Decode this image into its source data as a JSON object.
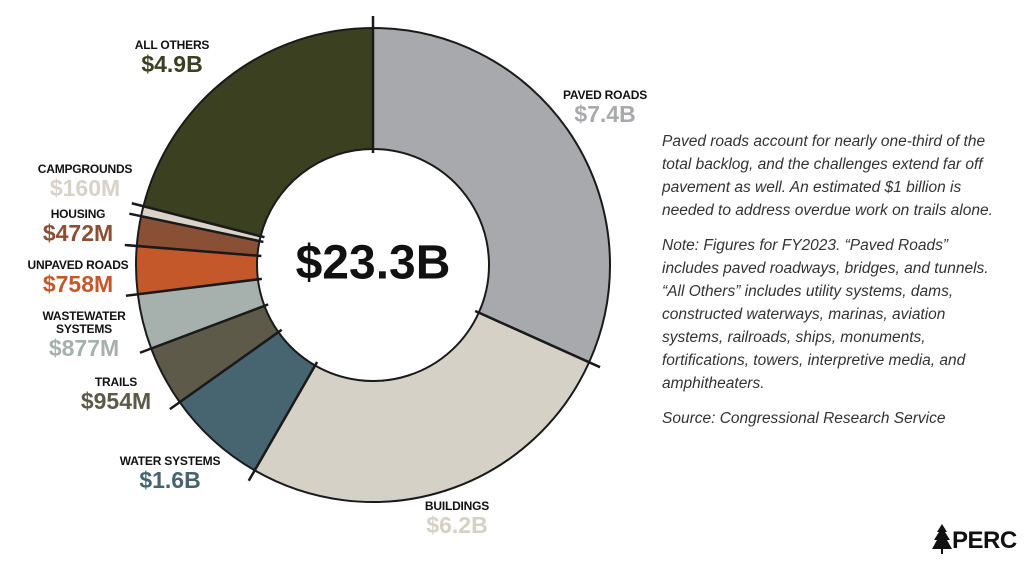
{
  "chart_data": {
    "type": "pie",
    "donut": true,
    "categories": [
      "PAVED ROADS",
      "BUILDINGS",
      "WATER SYSTEMS",
      "TRAILS",
      "WASTEWATER SYSTEMS",
      "UNPAVED ROADS",
      "HOUSING",
      "CAMPGROUNDS",
      "ALL OTHERS"
    ],
    "values": [
      7400000000,
      6200000000,
      1600000000,
      954000000,
      877000000,
      758000000,
      472000000,
      160000000,
      4900000000
    ],
    "value_labels": [
      "$7.4B",
      "$6.2B",
      "$1.6B",
      "$954M",
      "$877M",
      "$758M",
      "$472M",
      "$160M",
      "$4.9B"
    ],
    "colors": [
      "#a7a9ac",
      "#d6d1c7",
      "#476570",
      "#5d5a4a",
      "#a6b1ad",
      "#c4582a",
      "#8a5036",
      "#d9d2c9",
      "#3b4020"
    ],
    "center_label": "$23.3B"
  },
  "sidebar": {
    "paragraphs": [
      "Paved roads account for nearly one-third of the total backlog, and the challenges extend far off pavement as well. An estimated $1 billion is needed to address overdue work on trails alone.",
      "Note: Figures for FY2023. “Paved Roads” includes paved roadways, bridges, and tunnels. “All Others” includes utility systems, dams, constructed waterways, marinas, aviation systems, railroads, ships, monuments, fortifications, towers, interpretive media, and amphitheaters.",
      "Source: Congressional Research Service"
    ]
  },
  "logo": {
    "text": "PERC"
  }
}
